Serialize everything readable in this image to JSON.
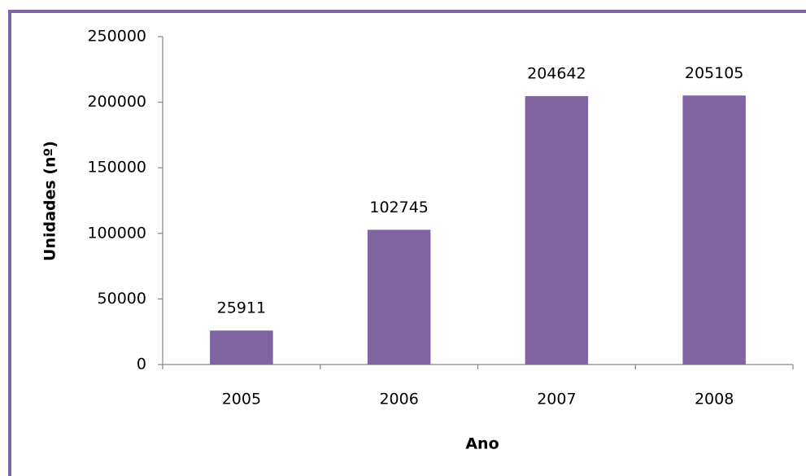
{
  "chart_data": {
    "type": "bar",
    "x_label": "Ano",
    "y_label": "Unidades (nº)",
    "categories": [
      "2005",
      "2006",
      "2007",
      "2008"
    ],
    "values": [
      25911,
      102745,
      204642,
      205105
    ],
    "color": "#8064a2",
    "ylim": [
      0,
      250000
    ],
    "yticks": [
      0,
      50000,
      100000,
      150000,
      200000,
      250000
    ],
    "grid": false
  }
}
